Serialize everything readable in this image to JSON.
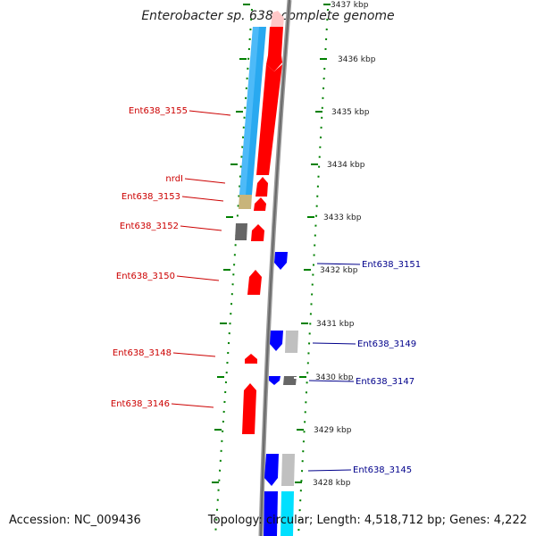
{
  "title": "Enterobacter sp. 638, complete genome",
  "footer": {
    "accession": "Accession: NC_009436",
    "topology": "Topology: circular; Length: 4,518,712 bp; Genes: 4,222"
  },
  "colors": {
    "forward_gene": "#ff0000",
    "reverse_gene": "#0000ff",
    "skyblue": "#29a9f0",
    "tan": "#c8b47a",
    "gray": "#666666",
    "lightgray": "#c0c0c0",
    "cyan": "#00e0ff",
    "pink": "#ffc8c8",
    "backbone": "#888888",
    "ticks": "#008000",
    "left_label": "#cc0000",
    "right_label": "#00008b"
  },
  "kbp_ticks": [
    {
      "label": "3437 kbp"
    },
    {
      "label": "3436 kbp"
    },
    {
      "label": "3435 kbp"
    },
    {
      "label": "3434 kbp"
    },
    {
      "label": "3433 kbp"
    },
    {
      "label": "3432 kbp"
    },
    {
      "label": "3431 kbp"
    },
    {
      "label": "3430 kbp"
    },
    {
      "label": "3429 kbp"
    },
    {
      "label": "3428 kbp"
    }
  ],
  "left_genes": [
    {
      "label": "Ent638_3155"
    },
    {
      "label": "nrdI"
    },
    {
      "label": "Ent638_3153"
    },
    {
      "label": "Ent638_3152"
    },
    {
      "label": "Ent638_3150"
    },
    {
      "label": "Ent638_3148"
    },
    {
      "label": "Ent638_3146"
    }
  ],
  "right_genes": [
    {
      "label": "Ent638_3151"
    },
    {
      "label": "Ent638_3149"
    },
    {
      "label": "Ent638_3147"
    },
    {
      "label": "Ent638_3145"
    }
  ]
}
